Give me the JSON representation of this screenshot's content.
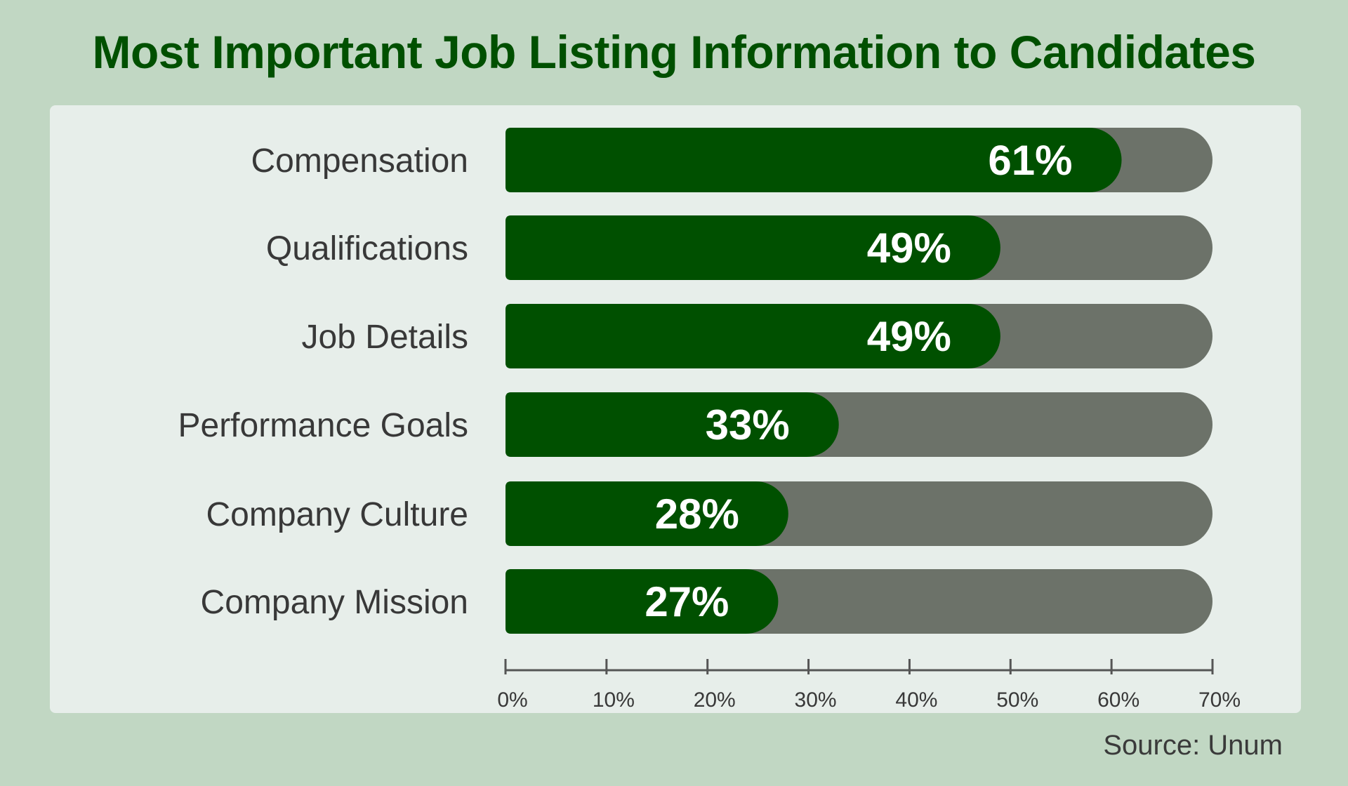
{
  "title": "Most Important Job Listing Information to Candidates",
  "source": "Source: Unum",
  "colors": {
    "background": "#c1d7c3",
    "panel": "#e7eeea",
    "bar_fill": "#005000",
    "bar_track": "#6c7269",
    "title": "#005000",
    "value_text": "#ffffff",
    "axis": "#555555"
  },
  "chart_data": {
    "type": "bar",
    "orientation": "horizontal",
    "categories": [
      "Compensation",
      "Qualifications",
      "Job Details",
      "Performance Goals",
      "Company Culture",
      "Company Mission"
    ],
    "values": [
      61,
      49,
      49,
      33,
      28,
      27
    ],
    "value_labels": [
      "61%",
      "49%",
      "49%",
      "33%",
      "28%",
      "27%"
    ],
    "xlim": [
      0,
      70
    ],
    "xticks": [
      0,
      10,
      20,
      30,
      40,
      50,
      60,
      70
    ],
    "xtick_labels": [
      "0%",
      "10%",
      "20%",
      "30%",
      "40%",
      "50%",
      "60%",
      "70%"
    ],
    "unit": "%",
    "grid": false,
    "legend": false
  }
}
